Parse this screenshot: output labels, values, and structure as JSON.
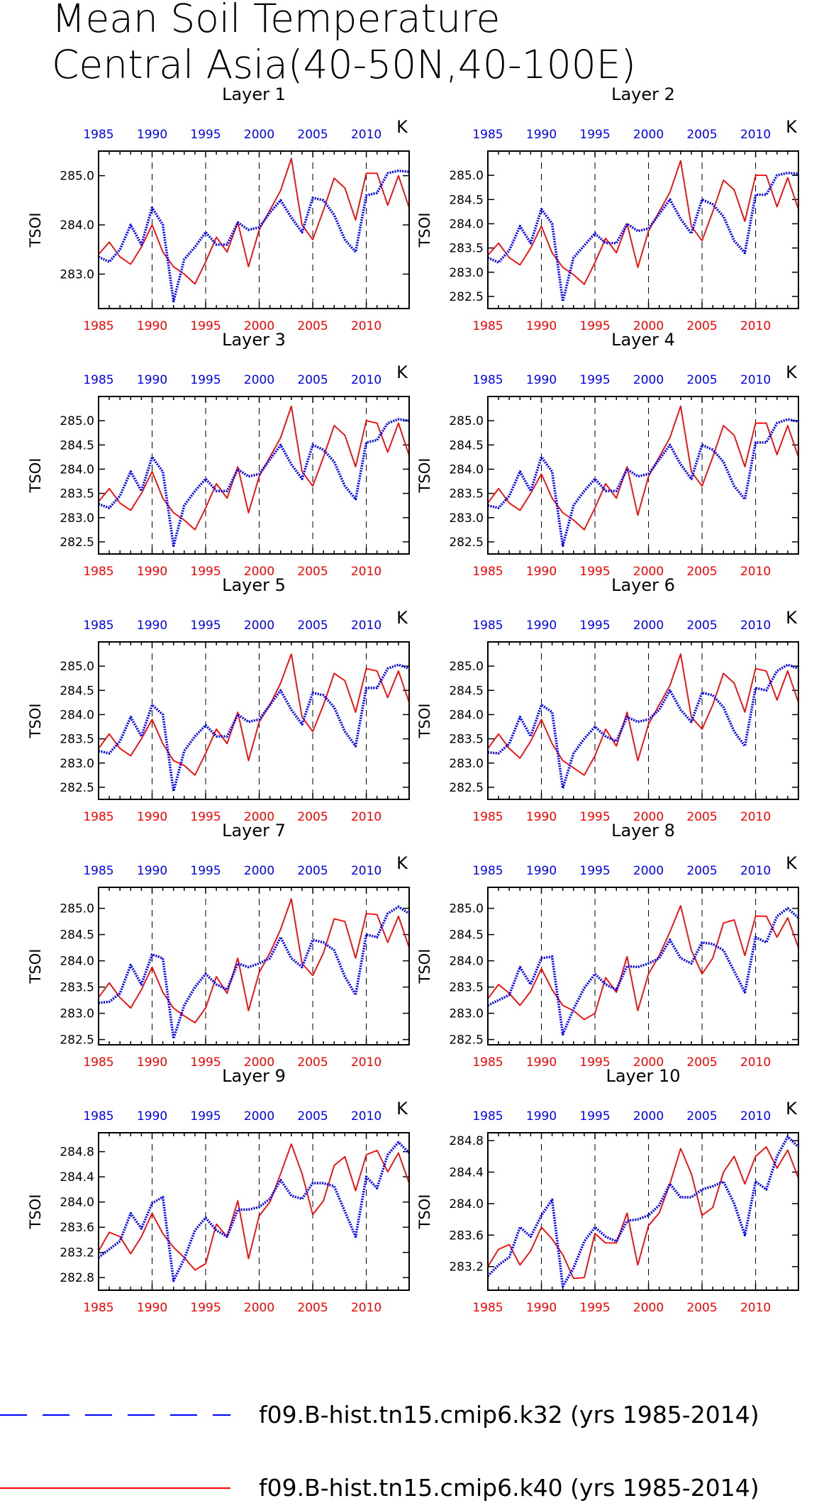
{
  "title_lines": [
    "Mean Soil Temperature",
    "Central Asia(40-50N,40-100E)"
  ],
  "legend": [
    {
      "label": "f09.B-hist.tn15.cmip6.k32 (yrs 1985-2014)",
      "color": "#0000ff",
      "style": "dashed"
    },
    {
      "label": "f09.B-hist.tn15.cmip6.k40 (yrs 1985-2014)",
      "color": "#ff0000",
      "style": "solid"
    }
  ],
  "chart_data": {
    "type": "line",
    "x": [
      1985,
      1986,
      1987,
      1988,
      1989,
      1990,
      1991,
      1992,
      1993,
      1994,
      1995,
      1996,
      1997,
      1998,
      1999,
      2000,
      2001,
      2002,
      2003,
      2004,
      2005,
      2006,
      2007,
      2008,
      2009,
      2010,
      2011,
      2012,
      2013,
      2014
    ],
    "x_ticks": [
      1985,
      1990,
      1995,
      2000,
      2005,
      2010
    ],
    "xlim": [
      1985,
      2014
    ],
    "grid": "dashed vertical lines at 1990, 1995, 2000, 2005, 2010",
    "top_axis_color": "#0000ff",
    "bottom_axis_color": "#ff0000",
    "panels": [
      {
        "title": "Layer 1",
        "ylabel": "TSOI",
        "units": "K",
        "ylim": [
          282.3,
          285.5
        ],
        "yticks": [
          283.0,
          284.0,
          285.0
        ],
        "series": [
          {
            "name": "f09.B-hist.tn15.cmip6.k32",
            "values": [
              283.35,
              283.25,
              283.5,
              284.0,
              283.6,
              284.35,
              284.0,
              282.45,
              283.3,
              283.55,
              283.85,
              283.6,
              283.6,
              284.05,
              283.9,
              283.95,
              284.25,
              284.5,
              284.15,
              283.85,
              284.55,
              284.5,
              284.2,
              283.7,
              283.45,
              284.6,
              284.65,
              285.05,
              285.1,
              285.08
            ]
          },
          {
            "name": "f09.B-hist.tn15.cmip6.k40",
            "values": [
              283.4,
              283.65,
              283.35,
              283.2,
              283.55,
              284.0,
              283.45,
              283.15,
              283.0,
              282.8,
              283.25,
              283.75,
              283.45,
              284.05,
              283.15,
              283.9,
              284.3,
              284.7,
              285.35,
              284.0,
              283.7,
              284.3,
              284.95,
              284.75,
              284.1,
              285.05,
              285.05,
              284.4,
              285.0,
              284.35
            ]
          }
        ]
      },
      {
        "title": "Layer 2",
        "ylabel": "TSOI",
        "units": "K",
        "ylim": [
          282.25,
          285.5
        ],
        "yticks": [
          282.5,
          283.0,
          283.5,
          284.0,
          284.5,
          285.0
        ],
        "series": [
          {
            "name": "f09.B-hist.tn15.cmip6.k32",
            "values": [
              283.3,
              283.2,
              283.45,
              283.95,
              283.6,
              284.3,
              284.0,
              282.4,
              283.3,
              283.55,
              283.8,
              283.6,
              283.6,
              284.0,
              283.85,
              283.9,
              284.2,
              284.5,
              284.1,
              283.8,
              284.5,
              284.4,
              284.15,
              283.65,
              283.4,
              284.6,
              284.6,
              285.0,
              285.05,
              285.03
            ]
          },
          {
            "name": "f09.B-hist.tn15.cmip6.k40",
            "values": [
              283.35,
              283.6,
              283.3,
              283.15,
              283.5,
              283.95,
              283.4,
              283.1,
              282.95,
              282.75,
              283.2,
              283.7,
              283.4,
              284.0,
              283.1,
              283.85,
              284.25,
              284.65,
              285.3,
              283.95,
              283.65,
              284.25,
              284.9,
              284.7,
              284.05,
              285.0,
              285.0,
              284.35,
              284.95,
              284.3
            ]
          }
        ]
      },
      {
        "title": "Layer 3",
        "ylabel": "TSOI",
        "units": "K",
        "ylim": [
          282.25,
          285.5
        ],
        "yticks": [
          282.5,
          283.0,
          283.5,
          284.0,
          284.5,
          285.0
        ],
        "series": [
          {
            "name": "f09.B-hist.tn15.cmip6.k32",
            "values": [
              283.28,
              283.2,
              283.45,
              283.95,
              283.55,
              284.25,
              283.95,
              282.42,
              283.25,
              283.55,
              283.8,
              283.55,
              283.55,
              284.0,
              283.85,
              283.9,
              284.2,
              284.5,
              284.1,
              283.8,
              284.5,
              284.4,
              284.15,
              283.65,
              283.38,
              284.55,
              284.6,
              284.95,
              285.03,
              285.0
            ]
          },
          {
            "name": "f09.B-hist.tn15.cmip6.k40",
            "values": [
              283.33,
              283.6,
              283.3,
              283.15,
              283.5,
              283.95,
              283.4,
              283.1,
              282.95,
              282.75,
              283.2,
              283.7,
              283.4,
              284.05,
              283.1,
              283.85,
              284.25,
              284.65,
              285.3,
              283.95,
              283.65,
              284.25,
              284.9,
              284.7,
              284.05,
              285.0,
              284.95,
              284.35,
              284.95,
              284.28
            ]
          }
        ]
      },
      {
        "title": "Layer 4",
        "ylabel": "TSOI",
        "units": "K",
        "ylim": [
          282.25,
          285.5
        ],
        "yticks": [
          282.5,
          283.0,
          283.5,
          284.0,
          284.5,
          285.0
        ],
        "series": [
          {
            "name": "f09.B-hist.tn15.cmip6.k32",
            "values": [
              283.25,
              283.2,
              283.45,
              283.95,
              283.55,
              284.25,
              283.95,
              282.42,
              283.25,
              283.55,
              283.8,
              283.55,
              283.55,
              284.0,
              283.85,
              283.9,
              284.2,
              284.5,
              284.1,
              283.8,
              284.5,
              284.4,
              284.15,
              283.65,
              283.38,
              284.55,
              284.55,
              284.95,
              285.03,
              284.98
            ]
          },
          {
            "name": "f09.B-hist.tn15.cmip6.k40",
            "values": [
              283.3,
              283.6,
              283.3,
              283.15,
              283.5,
              283.9,
              283.4,
              283.1,
              282.95,
              282.75,
              283.2,
              283.7,
              283.4,
              284.05,
              283.05,
              283.85,
              284.25,
              284.65,
              285.3,
              283.95,
              283.65,
              284.25,
              284.9,
              284.7,
              284.05,
              284.95,
              284.95,
              284.3,
              284.9,
              284.25
            ]
          }
        ]
      },
      {
        "title": "Layer 5",
        "ylabel": "TSOI",
        "units": "K",
        "ylim": [
          282.25,
          285.5
        ],
        "yticks": [
          282.5,
          283.0,
          283.5,
          284.0,
          284.5,
          285.0
        ],
        "series": [
          {
            "name": "f09.B-hist.tn15.cmip6.k32",
            "values": [
              283.25,
              283.2,
              283.45,
              283.95,
              283.55,
              284.2,
              284.0,
              282.42,
              283.25,
              283.55,
              283.78,
              283.55,
              283.55,
              284.0,
              283.85,
              283.9,
              284.2,
              284.5,
              284.1,
              283.8,
              284.45,
              284.4,
              284.15,
              283.65,
              283.35,
              284.55,
              284.55,
              284.95,
              285.03,
              284.95
            ]
          },
          {
            "name": "f09.B-hist.tn15.cmip6.k40",
            "values": [
              283.3,
              283.6,
              283.3,
              283.15,
              283.5,
              283.9,
              283.4,
              283.05,
              282.95,
              282.75,
              283.2,
              283.7,
              283.4,
              284.05,
              283.05,
              283.85,
              284.2,
              284.65,
              285.25,
              283.95,
              283.65,
              284.2,
              284.85,
              284.7,
              284.05,
              284.95,
              284.9,
              284.35,
              284.9,
              284.25
            ]
          }
        ]
      },
      {
        "title": "Layer 6",
        "ylabel": "TSOI",
        "units": "K",
        "ylim": [
          282.25,
          285.5
        ],
        "yticks": [
          282.5,
          283.0,
          283.5,
          284.0,
          284.5,
          285.0
        ],
        "series": [
          {
            "name": "f09.B-hist.tn15.cmip6.k32",
            "values": [
              283.22,
              283.2,
              283.4,
              283.95,
              283.55,
              284.2,
              284.05,
              282.48,
              283.2,
              283.5,
              283.75,
              283.55,
              283.45,
              283.95,
              283.85,
              283.9,
              284.1,
              284.5,
              284.1,
              283.85,
              284.45,
              284.4,
              284.15,
              283.65,
              283.35,
              284.55,
              284.5,
              284.9,
              285.03,
              284.95
            ]
          },
          {
            "name": "f09.B-hist.tn15.cmip6.k40",
            "values": [
              283.3,
              283.6,
              283.3,
              283.1,
              283.45,
              283.9,
              283.4,
              283.05,
              282.9,
              282.75,
              283.15,
              283.7,
              283.35,
              284.05,
              283.05,
              283.8,
              284.2,
              284.6,
              285.25,
              283.95,
              283.7,
              284.2,
              284.85,
              284.65,
              284.05,
              284.95,
              284.9,
              284.3,
              284.9,
              284.25
            ]
          }
        ]
      },
      {
        "title": "Layer 7",
        "ylabel": "TSOI",
        "units": "K",
        "ylim": [
          282.4,
          285.4
        ],
        "yticks": [
          282.5,
          283.0,
          283.5,
          284.0,
          284.5,
          285.0
        ],
        "series": [
          {
            "name": "f09.B-hist.tn15.cmip6.k32",
            "values": [
              283.2,
              283.22,
              283.38,
              283.92,
              283.55,
              284.12,
              284.05,
              282.52,
              283.15,
              283.5,
              283.75,
              283.55,
              283.45,
              283.95,
              283.88,
              283.95,
              284.05,
              284.45,
              284.05,
              283.88,
              284.4,
              284.35,
              284.2,
              283.7,
              283.35,
              284.5,
              284.45,
              284.9,
              285.03,
              284.9
            ]
          },
          {
            "name": "f09.B-hist.tn15.cmip6.k40",
            "values": [
              283.3,
              283.58,
              283.3,
              283.1,
              283.45,
              283.88,
              283.4,
              283.1,
              282.95,
              282.82,
              283.1,
              283.7,
              283.38,
              284.05,
              283.05,
              283.78,
              284.15,
              284.6,
              285.18,
              283.95,
              283.72,
              284.15,
              284.8,
              284.75,
              284.05,
              284.9,
              284.88,
              284.35,
              284.85,
              284.25
            ]
          }
        ]
      },
      {
        "title": "Layer 8",
        "ylabel": "TSOI",
        "units": "K",
        "ylim": [
          282.4,
          285.4
        ],
        "yticks": [
          282.5,
          283.0,
          283.5,
          284.0,
          284.5,
          285.0
        ],
        "series": [
          {
            "name": "f09.B-hist.tn15.cmip6.k32",
            "values": [
              283.15,
              283.25,
              283.35,
              283.88,
              283.55,
              284.05,
              284.08,
              282.6,
              283.08,
              283.48,
              283.75,
              283.55,
              283.45,
              283.9,
              283.88,
              283.95,
              284.05,
              284.4,
              284.05,
              283.95,
              284.35,
              284.32,
              284.2,
              283.8,
              283.4,
              284.45,
              284.35,
              284.85,
              285.0,
              284.82
            ]
          },
          {
            "name": "f09.B-hist.tn15.cmip6.k40",
            "values": [
              283.28,
              283.55,
              283.38,
              283.15,
              283.42,
              283.85,
              283.45,
              283.15,
              283.05,
              282.88,
              283.0,
              283.68,
              283.4,
              284.08,
              283.05,
              283.75,
              284.1,
              284.55,
              285.05,
              284.2,
              283.75,
              284.05,
              284.72,
              284.78,
              284.1,
              284.85,
              284.85,
              284.45,
              284.82,
              284.25
            ]
          }
        ]
      },
      {
        "title": "Layer 9",
        "ylabel": "TSOI",
        "units": "K",
        "ylim": [
          282.6,
          285.1
        ],
        "yticks": [
          282.8,
          283.2,
          283.6,
          284.0,
          284.4,
          284.8
        ],
        "series": [
          {
            "name": "f09.B-hist.tn15.cmip6.k32",
            "values": [
              283.12,
              283.25,
              283.38,
              283.82,
              283.58,
              283.98,
              284.08,
              282.75,
              283.1,
              283.55,
              283.75,
              283.55,
              283.45,
              283.88,
              283.88,
              283.92,
              284.05,
              284.35,
              284.1,
              284.05,
              284.3,
              284.3,
              284.25,
              283.85,
              283.45,
              284.4,
              284.22,
              284.75,
              284.95,
              284.78
            ]
          },
          {
            "name": "f09.B-hist.tn15.cmip6.k40",
            "values": [
              283.22,
              283.52,
              283.45,
              283.18,
              283.45,
              283.82,
              283.5,
              283.28,
              283.12,
              282.92,
              283.02,
              283.65,
              283.45,
              284.02,
              283.1,
              283.78,
              284.0,
              284.45,
              284.92,
              284.45,
              283.8,
              284.02,
              284.58,
              284.72,
              284.18,
              284.75,
              284.82,
              284.48,
              284.78,
              284.3
            ]
          }
        ]
      },
      {
        "title": "Layer 10",
        "ylabel": "TSOI",
        "units": "K",
        "ylim": [
          282.9,
          284.9
        ],
        "yticks": [
          283.2,
          283.6,
          284.0,
          284.4,
          284.8
        ],
        "series": [
          {
            "name": "f09.B-hist.tn15.cmip6.k32",
            "values": [
              283.08,
              283.22,
              283.32,
              283.7,
              283.58,
              283.85,
              284.05,
              282.95,
              283.18,
              283.52,
              283.7,
              283.58,
              283.52,
              283.78,
              283.8,
              283.85,
              283.98,
              284.25,
              284.08,
              284.08,
              284.18,
              284.22,
              284.28,
              284.0,
              283.6,
              284.28,
              284.18,
              284.6,
              284.85,
              284.72
            ]
          },
          {
            "name": "f09.B-hist.tn15.cmip6.k40",
            "values": [
              283.2,
              283.42,
              283.48,
              283.22,
              283.4,
              283.7,
              283.55,
              283.35,
              283.05,
              283.06,
              283.62,
              283.5,
              283.5,
              283.88,
              283.22,
              283.72,
              283.88,
              284.25,
              284.7,
              284.38,
              283.85,
              283.95,
              284.4,
              284.6,
              284.25,
              284.6,
              284.72,
              284.45,
              284.68,
              284.32
            ]
          }
        ]
      }
    ]
  }
}
